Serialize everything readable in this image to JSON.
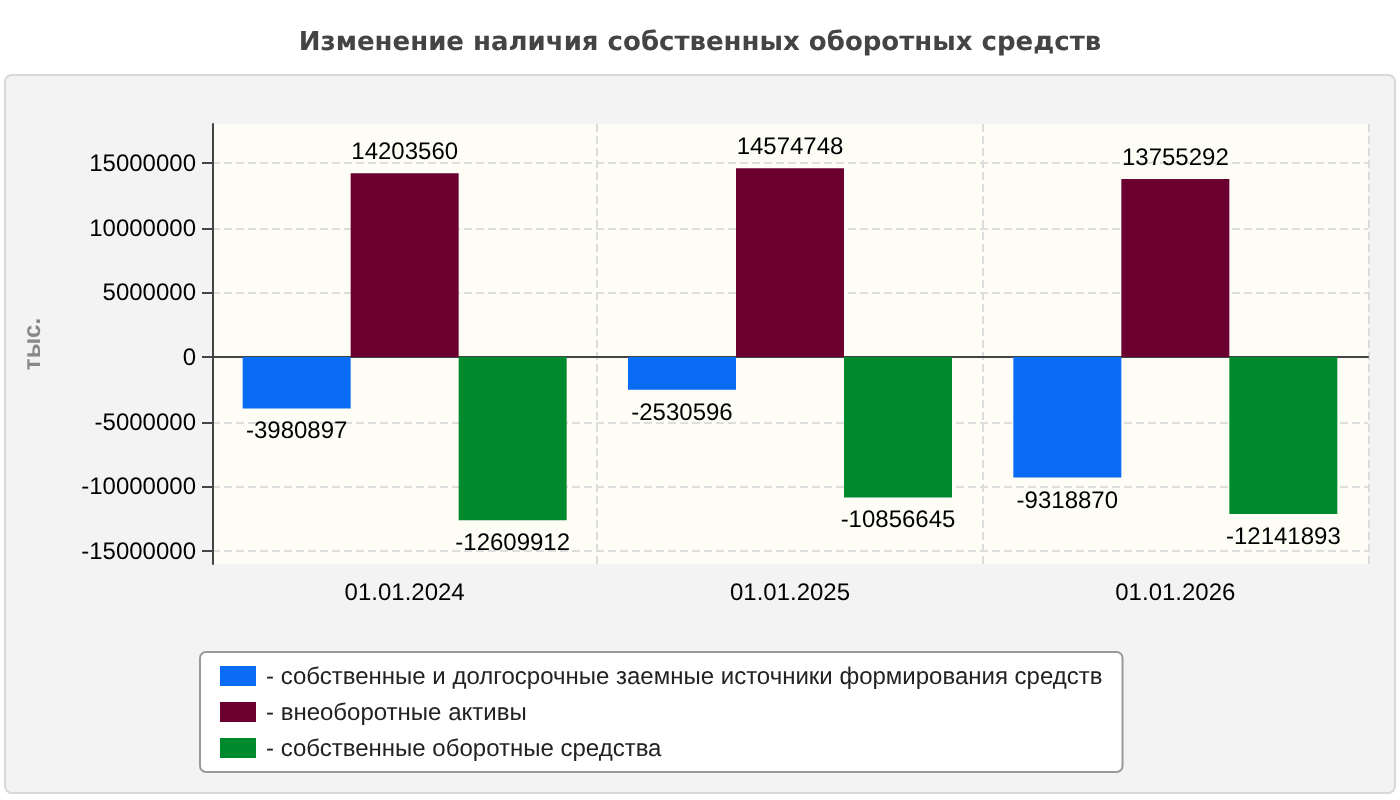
{
  "chart_data": {
    "type": "bar",
    "title": "Изменение наличия собственных оборотных средств",
    "ylabel": "тыс.",
    "categories": [
      "01.01.2024",
      "01.01.2025",
      "01.01.2026"
    ],
    "series": [
      {
        "name": "- собственные и долгосрочные заемные источники формирования средств",
        "color": "#0a6cf5",
        "values": [
          -3980897,
          -2530596,
          -9318870
        ]
      },
      {
        "name": "- внеоборотные активы",
        "color": "#6b0030",
        "values": [
          14203560,
          14574748,
          13755292
        ]
      },
      {
        "name": "- собственные оборотные средства",
        "color": "#008a2e",
        "values": [
          -12609912,
          -10856645,
          -12141893
        ]
      }
    ],
    "ylim": [
      -16000000,
      18000000
    ],
    "yticks": [
      -15000000,
      -10000000,
      -5000000,
      0,
      5000000,
      10000000,
      15000000
    ],
    "grid": true,
    "legend": "bottom",
    "data_labels": true
  }
}
